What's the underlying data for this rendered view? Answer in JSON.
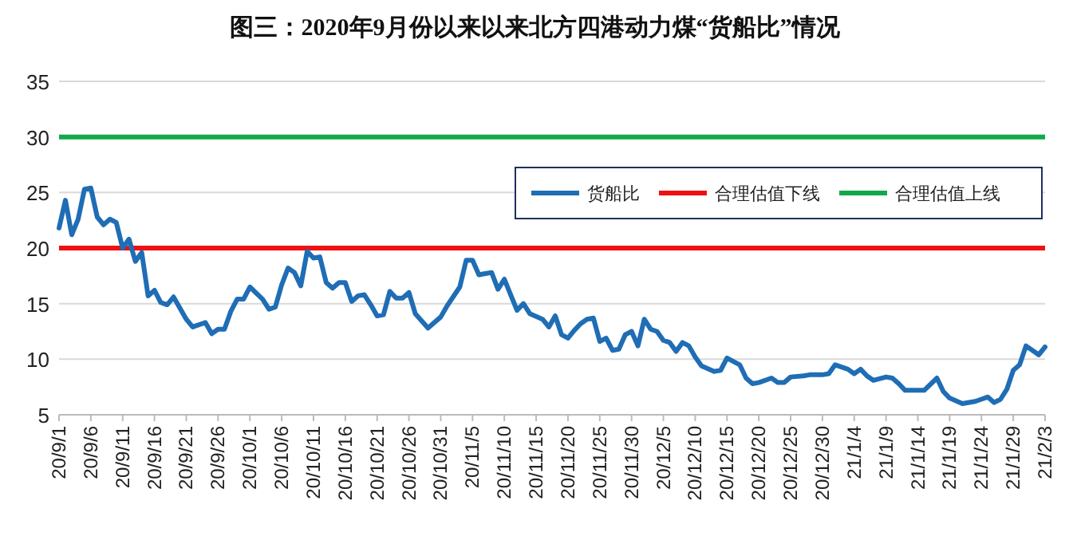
{
  "chart_data": {
    "type": "line",
    "title": "图三：2020年9月份以来以来北方四港动力煤“货船比”情况",
    "x": [
      "2020-09-01",
      "2020-09-02",
      "2020-09-03",
      "2020-09-04",
      "2020-09-05",
      "2020-09-06",
      "2020-09-07",
      "2020-09-08",
      "2020-09-09",
      "2020-09-10",
      "2020-09-11",
      "2020-09-12",
      "2020-09-13",
      "2020-09-14",
      "2020-09-15",
      "2020-09-16",
      "2020-09-17",
      "2020-09-18",
      "2020-09-19",
      "2020-09-21",
      "2020-09-22",
      "2020-09-24",
      "2020-09-25",
      "2020-09-26",
      "2020-09-27",
      "2020-09-28",
      "2020-09-29",
      "2020-09-30",
      "2020-10-01",
      "2020-10-03",
      "2020-10-04",
      "2020-10-05",
      "2020-10-06",
      "2020-10-07",
      "2020-10-08",
      "2020-10-09",
      "2020-10-10",
      "2020-10-11",
      "2020-10-12",
      "2020-10-13",
      "2020-10-14",
      "2020-10-15",
      "2020-10-16",
      "2020-10-17",
      "2020-10-18",
      "2020-10-19",
      "2020-10-20",
      "2020-10-21",
      "2020-10-22",
      "2020-10-23",
      "2020-10-24",
      "2020-10-25",
      "2020-10-26",
      "2020-10-27",
      "2020-10-29",
      "2020-10-31",
      "2020-11-01",
      "2020-11-03",
      "2020-11-04",
      "2020-11-05",
      "2020-11-06",
      "2020-11-07",
      "2020-11-08",
      "2020-11-09",
      "2020-11-10",
      "2020-11-11",
      "2020-11-12",
      "2020-11-13",
      "2020-11-14",
      "2020-11-16",
      "2020-11-17",
      "2020-11-18",
      "2020-11-19",
      "2020-11-20",
      "2020-11-21",
      "2020-11-22",
      "2020-11-23",
      "2020-11-24",
      "2020-11-25",
      "2020-11-26",
      "2020-11-27",
      "2020-11-28",
      "2020-11-29",
      "2020-11-30",
      "2020-12-01",
      "2020-12-02",
      "2020-12-03",
      "2020-12-04",
      "2020-12-05",
      "2020-12-06",
      "2020-12-07",
      "2020-12-08",
      "2020-12-09",
      "2020-12-10",
      "2020-12-11",
      "2020-12-13",
      "2020-12-14",
      "2020-12-15",
      "2020-12-17",
      "2020-12-18",
      "2020-12-19",
      "2020-12-20",
      "2020-12-22",
      "2020-12-23",
      "2020-12-24",
      "2020-12-25",
      "2020-12-27",
      "2020-12-28",
      "2020-12-30",
      "2020-12-31",
      "2021-01-01",
      "2021-01-03",
      "2021-01-04",
      "2021-01-05",
      "2021-01-06",
      "2021-01-07",
      "2021-01-09",
      "2021-01-10",
      "2021-01-11",
      "2021-01-12",
      "2021-01-13",
      "2021-01-15",
      "2021-01-17",
      "2021-01-18",
      "2021-01-19",
      "2021-01-21",
      "2021-01-23",
      "2021-01-24",
      "2021-01-25",
      "2021-01-26",
      "2021-01-27",
      "2021-01-28",
      "2021-01-29",
      "2021-01-30",
      "2021-01-31",
      "2021-02-02",
      "2021-02-03"
    ],
    "series": [
      {
        "name": "货船比",
        "color": "#1f6db5",
        "values": [
          21.8,
          24.3,
          21.2,
          22.6,
          25.3,
          25.4,
          22.8,
          22.1,
          22.6,
          22.3,
          20.0,
          20.8,
          18.8,
          19.6,
          15.7,
          16.2,
          15.1,
          14.9,
          15.6,
          13.6,
          12.9,
          13.3,
          12.3,
          12.7,
          12.7,
          14.3,
          15.4,
          15.4,
          16.5,
          15.4,
          14.5,
          14.7,
          16.7,
          18.2,
          17.8,
          16.6,
          19.7,
          19.1,
          19.2,
          16.9,
          16.4,
          16.9,
          16.9,
          15.2,
          15.7,
          15.8,
          14.9,
          13.9,
          14.0,
          16.1,
          15.5,
          15.5,
          16.0,
          14.1,
          12.8,
          13.8,
          14.8,
          16.5,
          18.9,
          18.9,
          17.6,
          17.7,
          17.8,
          16.3,
          17.2,
          15.8,
          14.4,
          15.0,
          14.1,
          13.6,
          12.9,
          13.9,
          12.2,
          11.9,
          12.6,
          13.2,
          13.6,
          13.7,
          11.6,
          11.9,
          10.8,
          10.9,
          12.2,
          12.5,
          11.2,
          13.6,
          12.7,
          12.5,
          11.7,
          11.5,
          10.7,
          11.5,
          11.2,
          10.2,
          9.4,
          8.9,
          9.0,
          10.1,
          9.5,
          8.3,
          7.8,
          7.9,
          8.3,
          7.9,
          7.9,
          8.4,
          8.5,
          8.6,
          8.6,
          8.7,
          9.5,
          9.1,
          8.7,
          9.1,
          8.5,
          8.1,
          8.4,
          8.3,
          7.8,
          7.2,
          7.2,
          7.2,
          8.3,
          7.1,
          6.5,
          6.0,
          6.2,
          6.4,
          6.6,
          6.1,
          6.4,
          7.3,
          9.0,
          9.5,
          11.2,
          10.4,
          11.1
        ]
      }
    ],
    "ref_lines": [
      {
        "axis": "y",
        "value": 20,
        "label": "合理估值下线",
        "color": "#ee1111"
      },
      {
        "axis": "y",
        "value": 30,
        "label": "合理估值上线",
        "color": "#11a84a"
      }
    ],
    "xlim": [
      "2020-09-01",
      "2021-02-03"
    ],
    "xticks": [
      {
        "value": "2020-09-01",
        "label": "20/9/1"
      },
      {
        "value": "2020-09-06",
        "label": "20/9/6"
      },
      {
        "value": "2020-09-11",
        "label": "20/9/11"
      },
      {
        "value": "2020-09-16",
        "label": "20/9/16"
      },
      {
        "value": "2020-09-21",
        "label": "20/9/21"
      },
      {
        "value": "2020-09-26",
        "label": "20/9/26"
      },
      {
        "value": "2020-10-01",
        "label": "20/10/1"
      },
      {
        "value": "2020-10-06",
        "label": "20/10/6"
      },
      {
        "value": "2020-10-11",
        "label": "20/10/11"
      },
      {
        "value": "2020-10-16",
        "label": "20/10/16"
      },
      {
        "value": "2020-10-21",
        "label": "20/10/21"
      },
      {
        "value": "2020-10-26",
        "label": "20/10/26"
      },
      {
        "value": "2020-10-31",
        "label": "20/10/31"
      },
      {
        "value": "2020-11-05",
        "label": "20/11/5"
      },
      {
        "value": "2020-11-10",
        "label": "20/11/10"
      },
      {
        "value": "2020-11-15",
        "label": "20/11/15"
      },
      {
        "value": "2020-11-20",
        "label": "20/11/20"
      },
      {
        "value": "2020-11-25",
        "label": "20/11/25"
      },
      {
        "value": "2020-11-30",
        "label": "20/11/30"
      },
      {
        "value": "2020-12-05",
        "label": "20/12/5"
      },
      {
        "value": "2020-12-10",
        "label": "20/12/10"
      },
      {
        "value": "2020-12-15",
        "label": "20/12/15"
      },
      {
        "value": "2020-12-20",
        "label": "20/12/20"
      },
      {
        "value": "2020-12-25",
        "label": "20/12/25"
      },
      {
        "value": "2020-12-30",
        "label": "20/12/30"
      },
      {
        "value": "2021-01-04",
        "label": "21/1/4"
      },
      {
        "value": "2021-01-09",
        "label": "21/1/9"
      },
      {
        "value": "2021-01-14",
        "label": "21/1/14"
      },
      {
        "value": "2021-01-19",
        "label": "21/1/19"
      },
      {
        "value": "2021-01-24",
        "label": "21/1/24"
      },
      {
        "value": "2021-01-29",
        "label": "21/1/29"
      },
      {
        "value": "2021-02-03",
        "label": "21/2/3"
      }
    ],
    "ylim": [
      5,
      35
    ],
    "yticks": [
      5,
      10,
      15,
      20,
      25,
      30,
      35
    ],
    "grid": "y",
    "legend": "top right"
  }
}
